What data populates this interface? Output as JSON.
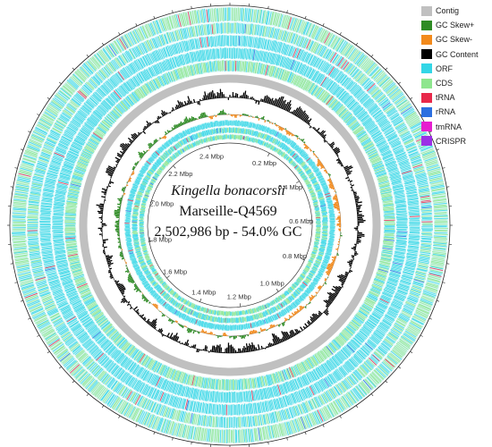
{
  "title": {
    "species": "Kingella bonacorsii",
    "strain": "Marseille-Q4569",
    "stats": "2,502,986 bp - 54.0% GC"
  },
  "genome": {
    "length_mbp": 2.502986,
    "gc_percent": 54.0
  },
  "scale_labels": [
    "0.2 Mbp",
    "0.4 Mbp",
    "0.6 Mbp",
    "0.8 Mbp",
    "1.0 Mbp",
    "1.2 Mbp",
    "1.4 Mbp",
    "1.6 Mbp",
    "1.8 Mbp",
    "2.0 Mbp",
    "2.2 Mbp",
    "2.4 Mbp"
  ],
  "scale_positions_mbp": [
    0.2,
    0.4,
    0.6,
    0.8,
    1.0,
    1.2,
    1.4,
    1.6,
    1.8,
    2.0,
    2.2,
    2.4
  ],
  "legend": [
    {
      "label": "Contig",
      "color": "#c0c0c0"
    },
    {
      "label": "GC Skew+",
      "color": "#2e8b24"
    },
    {
      "label": "GC Skew-",
      "color": "#f28a1c"
    },
    {
      "label": "GC Content",
      "color": "#000000"
    },
    {
      "label": "ORF",
      "color": "#33d6e6"
    },
    {
      "label": "CDS",
      "color": "#8ee68e"
    },
    {
      "label": "tRNA",
      "color": "#e8294a"
    },
    {
      "label": "rRNA",
      "color": "#2b6fe0"
    },
    {
      "label": "tmRNA",
      "color": "#e61ecf"
    },
    {
      "label": "CRISPR",
      "color": "#9b30e6"
    }
  ]
}
